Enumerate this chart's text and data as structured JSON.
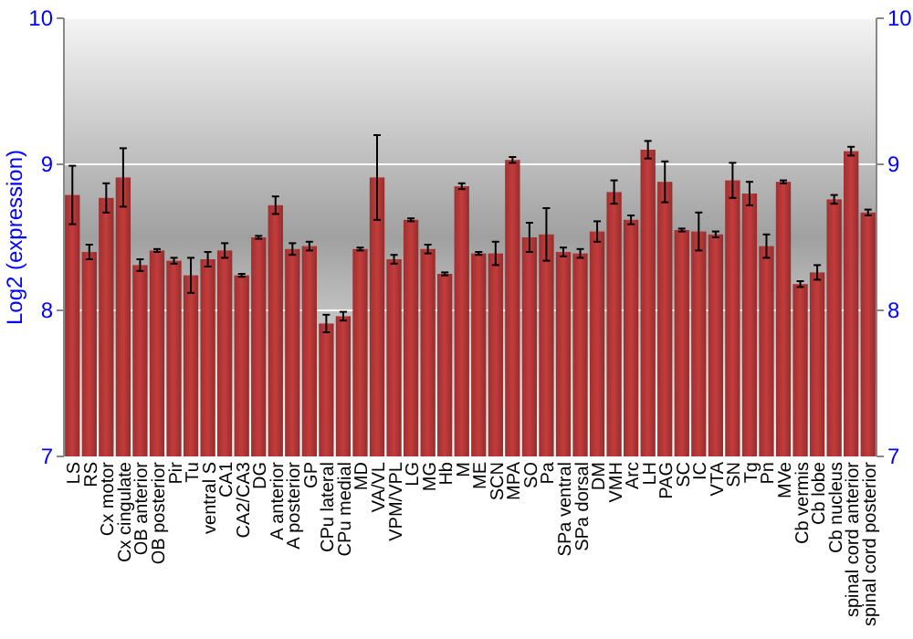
{
  "chart_data": {
    "type": "bar",
    "ylabel": "Log2 (expression)",
    "categories": [
      "LS",
      "RS",
      "Cx motor",
      "Cx cingulate",
      "OB anterior",
      "OB posterior",
      "Pir",
      "Tu",
      "ventral S",
      "CA1",
      "CA2/CA3",
      "DG",
      "A anterior",
      "A posterior",
      "GP",
      "CPu lateral",
      "CPu medial",
      "MD",
      "VA/VL",
      "VPM/VPL",
      "LG",
      "MG",
      "Hb",
      "M",
      "ME",
      "SCN",
      "MPA",
      "SO",
      "Pa",
      "SPa ventral",
      "SPa dorsal",
      "DM",
      "VMH",
      "Arc",
      "LH",
      "PAG",
      "SC",
      "IC",
      "VTA",
      "SN",
      "Tg",
      "Pn",
      "MVe",
      "Cb vermis",
      "Cb lobe",
      "Cb nucleus",
      "spinal cord anterior",
      "spinal cord posterior"
    ],
    "values": [
      8.79,
      8.4,
      8.77,
      8.91,
      8.31,
      8.41,
      8.34,
      8.24,
      8.35,
      8.41,
      8.24,
      8.5,
      8.72,
      8.42,
      8.44,
      7.91,
      7.96,
      8.42,
      8.91,
      8.35,
      8.62,
      8.42,
      8.25,
      8.85,
      8.39,
      8.39,
      9.03,
      8.5,
      8.52,
      8.4,
      8.39,
      8.54,
      8.81,
      8.62,
      9.1,
      8.88,
      8.55,
      8.54,
      8.52,
      8.89,
      8.8,
      8.44,
      8.88,
      8.18,
      8.26,
      8.76,
      9.09,
      8.67
    ],
    "errors": [
      0.2,
      0.05,
      0.1,
      0.2,
      0.04,
      0.01,
      0.02,
      0.12,
      0.05,
      0.05,
      0.01,
      0.01,
      0.06,
      0.04,
      0.03,
      0.06,
      0.03,
      0.01,
      0.29,
      0.03,
      0.01,
      0.03,
      0.01,
      0.02,
      0.01,
      0.08,
      0.02,
      0.1,
      0.18,
      0.03,
      0.03,
      0.07,
      0.08,
      0.03,
      0.06,
      0.14,
      0.01,
      0.13,
      0.02,
      0.12,
      0.08,
      0.08,
      0.01,
      0.02,
      0.05,
      0.03,
      0.03,
      0.02
    ],
    "color": "#c43c3c",
    "ylim": [
      7,
      10
    ],
    "yticks": [
      7,
      8,
      9,
      10
    ],
    "y2lim": [
      7,
      10
    ],
    "y2ticks": [
      7,
      8,
      9,
      10
    ],
    "grid": "y"
  }
}
